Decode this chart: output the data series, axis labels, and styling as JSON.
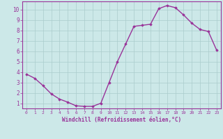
{
  "x": [
    0,
    1,
    2,
    3,
    4,
    5,
    6,
    7,
    8,
    9,
    10,
    11,
    12,
    13,
    14,
    15,
    16,
    17,
    18,
    19,
    20,
    21,
    22,
    23
  ],
  "y": [
    3.8,
    3.4,
    2.7,
    1.9,
    1.4,
    1.1,
    0.75,
    0.7,
    0.7,
    1.0,
    3.0,
    5.0,
    6.7,
    8.4,
    8.5,
    8.6,
    10.1,
    10.4,
    10.2,
    9.5,
    8.7,
    8.1,
    7.9,
    6.1
  ],
  "line_color": "#993399",
  "marker": "D",
  "marker_size": 1.8,
  "bg_color": "#cce8e8",
  "grid_color": "#aacccc",
  "xlabel": "Windchill (Refroidissement éolien,°C)",
  "xlabel_color": "#993399",
  "tick_color": "#993399",
  "ylim": [
    0.5,
    10.8
  ],
  "xlim": [
    -0.5,
    23.5
  ],
  "yticks": [
    1,
    2,
    3,
    4,
    5,
    6,
    7,
    8,
    9,
    10
  ],
  "xticks": [
    0,
    1,
    2,
    3,
    4,
    5,
    6,
    7,
    8,
    9,
    10,
    11,
    12,
    13,
    14,
    15,
    16,
    17,
    18,
    19,
    20,
    21,
    22,
    23
  ],
  "border_color": "#993399",
  "linewidth": 1.0
}
